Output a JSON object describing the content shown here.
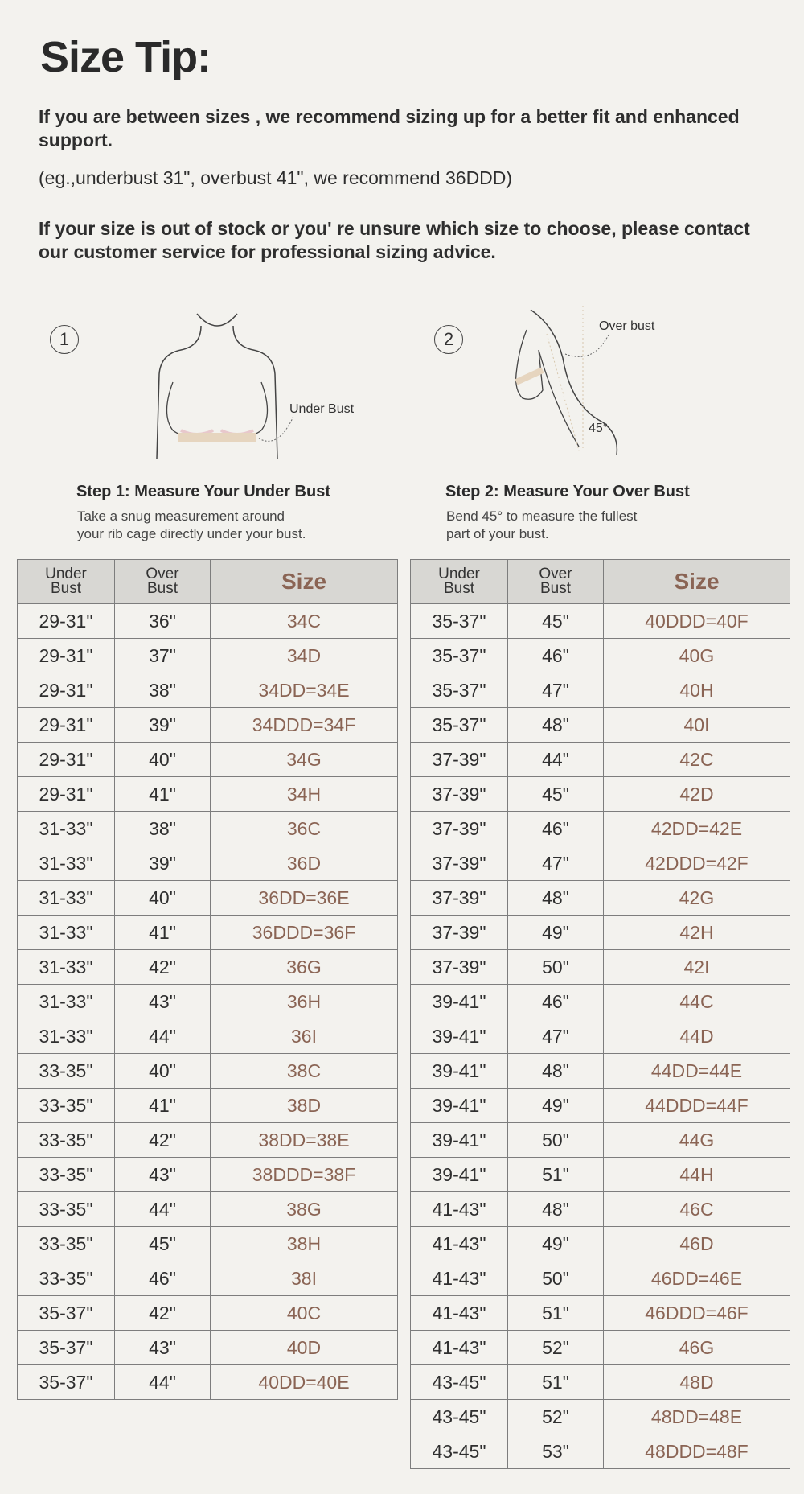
{
  "title": "Size Tip:",
  "tips": [
    "If you are between sizes , we recommend sizing up for a better fit and enhanced support.",
    "(eg.,underbust 31\", overbust 41\", we recommend 36DDD)",
    "If your size is out of stock or you' re unsure which size to choose, please contact our customer service for professional sizing advice."
  ],
  "steps": [
    {
      "number": "1",
      "label": "Under Bust",
      "title": "Step 1: Measure Your Under Bust",
      "desc": [
        "Take a snug measurement around",
        "your rib cage directly under your bust."
      ]
    },
    {
      "number": "2",
      "label": "Over bust",
      "angle": "45°",
      "title": "Step 2: Measure Your Over Bust",
      "desc": [
        "Bend 45° to measure the fullest",
        "part of your bust."
      ]
    }
  ],
  "colors": {
    "background": "#f3f2ee",
    "size_text": "#8a6454",
    "header_bg": "#d8d7d3"
  },
  "table_headers": {
    "under": [
      "Under",
      "Bust"
    ],
    "over": [
      "Over",
      "Bust"
    ],
    "size": "Size"
  },
  "tables": [
    [
      [
        "29-31\"",
        "36\"",
        "34C"
      ],
      [
        "29-31\"",
        "37\"",
        "34D"
      ],
      [
        "29-31\"",
        "38\"",
        "34DD=34E"
      ],
      [
        "29-31\"",
        "39\"",
        "34DDD=34F"
      ],
      [
        "29-31\"",
        "40\"",
        "34G"
      ],
      [
        "29-31\"",
        "41\"",
        "34H"
      ],
      [
        "31-33\"",
        "38\"",
        "36C"
      ],
      [
        "31-33\"",
        "39\"",
        "36D"
      ],
      [
        "31-33\"",
        "40\"",
        "36DD=36E"
      ],
      [
        "31-33\"",
        "41\"",
        "36DDD=36F"
      ],
      [
        "31-33\"",
        "42\"",
        "36G"
      ],
      [
        "31-33\"",
        "43\"",
        "36H"
      ],
      [
        "31-33\"",
        "44\"",
        "36I"
      ],
      [
        "33-35\"",
        "40\"",
        "38C"
      ],
      [
        "33-35\"",
        "41\"",
        "38D"
      ],
      [
        "33-35\"",
        "42\"",
        "38DD=38E"
      ],
      [
        "33-35\"",
        "43\"",
        "38DDD=38F"
      ],
      [
        "33-35\"",
        "44\"",
        "38G"
      ],
      [
        "33-35\"",
        "45\"",
        "38H"
      ],
      [
        "33-35\"",
        "46\"",
        "38I"
      ],
      [
        "35-37\"",
        "42\"",
        "40C"
      ],
      [
        "35-37\"",
        "43\"",
        "40D"
      ],
      [
        "35-37\"",
        "44\"",
        "40DD=40E"
      ]
    ],
    [
      [
        "35-37\"",
        "45\"",
        "40DDD=40F"
      ],
      [
        "35-37\"",
        "46\"",
        "40G"
      ],
      [
        "35-37\"",
        "47\"",
        "40H"
      ],
      [
        "35-37\"",
        "48\"",
        "40I"
      ],
      [
        "37-39\"",
        "44\"",
        "42C"
      ],
      [
        "37-39\"",
        "45\"",
        "42D"
      ],
      [
        "37-39\"",
        "46\"",
        "42DD=42E"
      ],
      [
        "37-39\"",
        "47\"",
        "42DDD=42F"
      ],
      [
        "37-39\"",
        "48\"",
        "42G"
      ],
      [
        "37-39\"",
        "49\"",
        "42H"
      ],
      [
        "37-39\"",
        "50\"",
        "42I"
      ],
      [
        "39-41\"",
        "46\"",
        "44C"
      ],
      [
        "39-41\"",
        "47\"",
        "44D"
      ],
      [
        "39-41\"",
        "48\"",
        "44DD=44E"
      ],
      [
        "39-41\"",
        "49\"",
        "44DDD=44F"
      ],
      [
        "39-41\"",
        "50\"",
        "44G"
      ],
      [
        "39-41\"",
        "51\"",
        "44H"
      ],
      [
        "41-43\"",
        "48\"",
        "46C"
      ],
      [
        "41-43\"",
        "49\"",
        "46D"
      ],
      [
        "41-43\"",
        "50\"",
        "46DD=46E"
      ],
      [
        "41-43\"",
        "51\"",
        "46DDD=46F"
      ],
      [
        "41-43\"",
        "52\"",
        "46G"
      ],
      [
        "43-45\"",
        "51\"",
        "48D"
      ],
      [
        "43-45\"",
        "52\"",
        "48DD=48E"
      ],
      [
        "43-45\"",
        "53\"",
        "48DDD=48F"
      ]
    ]
  ]
}
